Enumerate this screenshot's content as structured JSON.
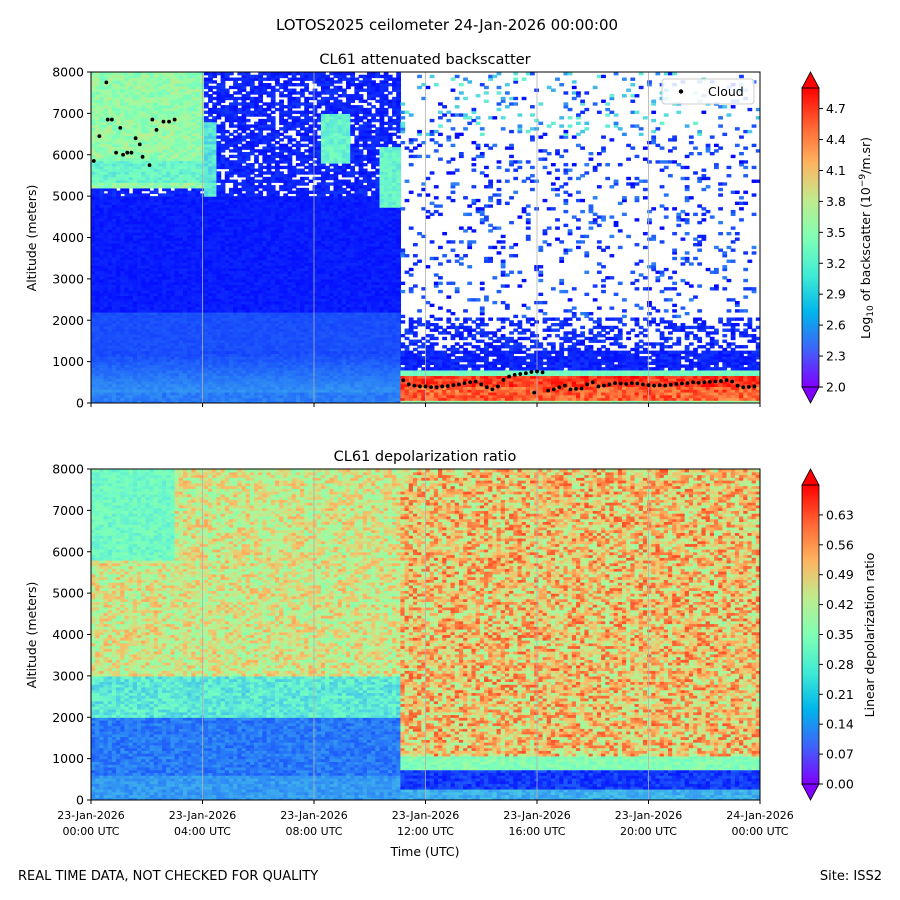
{
  "figure": {
    "suptitle": "LOTOS2025 ceilometer 24-Jan-2026 00:00:00",
    "footer_left": "REAL TIME DATA, NOT CHECKED FOR QUALITY",
    "footer_right": "Site: ISS2"
  },
  "chart_data": [
    {
      "type": "heatmap",
      "title": "CL61 attenuated backscatter",
      "xlabel": "",
      "ylabel": "Altitude (meters)",
      "xlim_hours": [
        0,
        24
      ],
      "ylim": [
        0,
        8000
      ],
      "x_tick_labels": [
        [
          "23-Jan-2026",
          "00:00 UTC"
        ],
        [
          "23-Jan-2026",
          "04:00 UTC"
        ],
        [
          "23-Jan-2026",
          "08:00 UTC"
        ],
        [
          "23-Jan-2026",
          "12:00 UTC"
        ],
        [
          "23-Jan-2026",
          "16:00 UTC"
        ],
        [
          "23-Jan-2026",
          "20:00 UTC"
        ],
        [
          "24-Jan-2026",
          "00:00 UTC"
        ]
      ],
      "y_ticks": [
        0,
        1000,
        2000,
        3000,
        4000,
        5000,
        6000,
        7000,
        8000
      ],
      "grid": "vertical",
      "colormap": "rainbow",
      "colorbar": {
        "label_main": "Log",
        "label_sub": "10",
        "label_rest": " of backscatter (10",
        "label_sup": "−9",
        "label_end": "/m.sr)",
        "range": [
          2.0,
          4.9
        ],
        "ticks": [
          "2.0",
          "2.3",
          "2.6",
          "2.9",
          "3.2",
          "3.5",
          "3.8",
          "4.1",
          "4.4",
          "4.7"
        ],
        "extend": "both"
      },
      "legend": {
        "label": "Cloud",
        "placement": "upper right"
      },
      "cloud_base_points": [
        {
          "x": 0.1,
          "y": 5850
        },
        {
          "x": 0.3,
          "y": 6450
        },
        {
          "x": 0.55,
          "y": 7750
        },
        {
          "x": 0.6,
          "y": 6850
        },
        {
          "x": 0.75,
          "y": 6850
        },
        {
          "x": 0.9,
          "y": 6050
        },
        {
          "x": 1.05,
          "y": 6650
        },
        {
          "x": 1.15,
          "y": 6000
        },
        {
          "x": 1.3,
          "y": 6050
        },
        {
          "x": 1.45,
          "y": 6050
        },
        {
          "x": 1.6,
          "y": 6400
        },
        {
          "x": 1.75,
          "y": 6250
        },
        {
          "x": 1.85,
          "y": 5950
        },
        {
          "x": 2.1,
          "y": 5750
        },
        {
          "x": 2.2,
          "y": 6850
        },
        {
          "x": 2.35,
          "y": 6600
        },
        {
          "x": 2.6,
          "y": 6800
        },
        {
          "x": 2.8,
          "y": 6800
        },
        {
          "x": 3.0,
          "y": 6850
        },
        {
          "x": 11.2,
          "y": 550
        },
        {
          "x": 11.4,
          "y": 450
        },
        {
          "x": 11.6,
          "y": 420
        },
        {
          "x": 11.8,
          "y": 400
        },
        {
          "x": 12.0,
          "y": 400
        },
        {
          "x": 12.2,
          "y": 380
        },
        {
          "x": 12.4,
          "y": 380
        },
        {
          "x": 12.6,
          "y": 400
        },
        {
          "x": 12.8,
          "y": 410
        },
        {
          "x": 13.0,
          "y": 430
        },
        {
          "x": 13.2,
          "y": 450
        },
        {
          "x": 13.4,
          "y": 480
        },
        {
          "x": 13.6,
          "y": 500
        },
        {
          "x": 13.8,
          "y": 520
        },
        {
          "x": 14.0,
          "y": 450
        },
        {
          "x": 14.2,
          "y": 380
        },
        {
          "x": 14.4,
          "y": 330
        },
        {
          "x": 14.6,
          "y": 400
        },
        {
          "x": 14.8,
          "y": 560
        },
        {
          "x": 15.0,
          "y": 640
        },
        {
          "x": 15.2,
          "y": 680
        },
        {
          "x": 15.4,
          "y": 700
        },
        {
          "x": 15.6,
          "y": 720
        },
        {
          "x": 15.8,
          "y": 750
        },
        {
          "x": 16.0,
          "y": 760
        },
        {
          "x": 16.2,
          "y": 740
        },
        {
          "x": 15.9,
          "y": 250
        },
        {
          "x": 16.4,
          "y": 300
        },
        {
          "x": 16.6,
          "y": 330
        },
        {
          "x": 16.8,
          "y": 380
        },
        {
          "x": 17.0,
          "y": 420
        },
        {
          "x": 17.2,
          "y": 330
        },
        {
          "x": 17.4,
          "y": 340
        },
        {
          "x": 17.6,
          "y": 350
        },
        {
          "x": 17.8,
          "y": 450
        },
        {
          "x": 18.0,
          "y": 500
        },
        {
          "x": 18.2,
          "y": 400
        },
        {
          "x": 18.4,
          "y": 420
        },
        {
          "x": 18.6,
          "y": 450
        },
        {
          "x": 18.8,
          "y": 480
        },
        {
          "x": 19.0,
          "y": 470
        },
        {
          "x": 19.2,
          "y": 460
        },
        {
          "x": 19.4,
          "y": 480
        },
        {
          "x": 19.6,
          "y": 470
        },
        {
          "x": 19.8,
          "y": 450
        },
        {
          "x": 20.0,
          "y": 430
        },
        {
          "x": 20.2,
          "y": 420
        },
        {
          "x": 20.4,
          "y": 430
        },
        {
          "x": 20.6,
          "y": 420
        },
        {
          "x": 20.8,
          "y": 440
        },
        {
          "x": 21.0,
          "y": 460
        },
        {
          "x": 21.2,
          "y": 470
        },
        {
          "x": 21.4,
          "y": 480
        },
        {
          "x": 21.6,
          "y": 500
        },
        {
          "x": 21.8,
          "y": 490
        },
        {
          "x": 22.0,
          "y": 500
        },
        {
          "x": 22.2,
          "y": 510
        },
        {
          "x": 22.4,
          "y": 520
        },
        {
          "x": 22.6,
          "y": 530
        },
        {
          "x": 22.8,
          "y": 550
        },
        {
          "x": 23.0,
          "y": 520
        },
        {
          "x": 23.2,
          "y": 420
        },
        {
          "x": 23.4,
          "y": 380
        },
        {
          "x": 23.6,
          "y": 390
        },
        {
          "x": 23.8,
          "y": 400
        }
      ]
    },
    {
      "type": "heatmap",
      "title": "CL61 depolarization ratio",
      "xlabel": "Time (UTC)",
      "ylabel": "Altitude (meters)",
      "xlim_hours": [
        0,
        24
      ],
      "ylim": [
        0,
        8000
      ],
      "x_tick_labels": [
        [
          "23-Jan-2026",
          "00:00 UTC"
        ],
        [
          "23-Jan-2026",
          "04:00 UTC"
        ],
        [
          "23-Jan-2026",
          "08:00 UTC"
        ],
        [
          "23-Jan-2026",
          "12:00 UTC"
        ],
        [
          "23-Jan-2026",
          "16:00 UTC"
        ],
        [
          "23-Jan-2026",
          "20:00 UTC"
        ],
        [
          "24-Jan-2026",
          "00:00 UTC"
        ]
      ],
      "y_ticks": [
        0,
        1000,
        2000,
        3000,
        4000,
        5000,
        6000,
        7000,
        8000
      ],
      "grid": "vertical",
      "colormap": "rainbow",
      "colorbar": {
        "label": "Linear depolarization ratio",
        "range": [
          0.0,
          0.7
        ],
        "ticks": [
          "0.00",
          "0.07",
          "0.14",
          "0.21",
          "0.28",
          "0.35",
          "0.42",
          "0.49",
          "0.56",
          "0.63"
        ],
        "extend": "both"
      }
    }
  ]
}
